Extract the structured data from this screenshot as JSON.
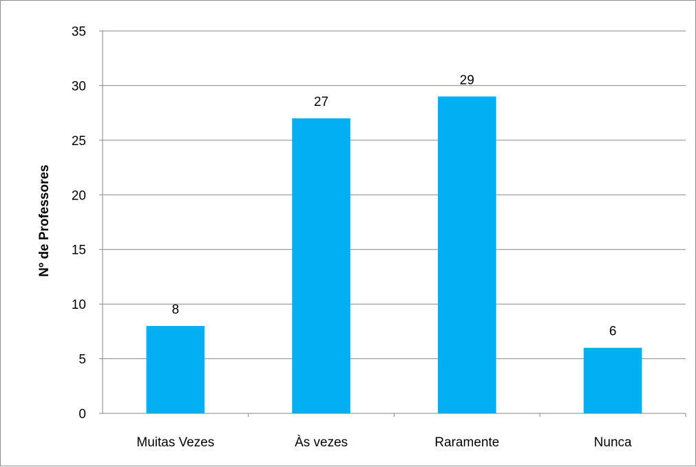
{
  "chart_data": {
    "type": "bar",
    "title": "",
    "xlabel": "",
    "ylabel": "Nº de Professores",
    "categories": [
      "Muitas Vezes",
      "Às vezes",
      "Raramente",
      "Nunca"
    ],
    "values": [
      8,
      27,
      29,
      6
    ],
    "ylim": [
      0,
      35
    ],
    "yticks": [
      "0",
      "5",
      "10",
      "15",
      "20",
      "25",
      "30",
      "35"
    ],
    "grid": true,
    "legend": "none",
    "data_labels": true,
    "colors": {
      "bar": "#00b0f0",
      "grid": "#868686",
      "axis": "#868686",
      "frame": "#8c8c8c"
    }
  }
}
